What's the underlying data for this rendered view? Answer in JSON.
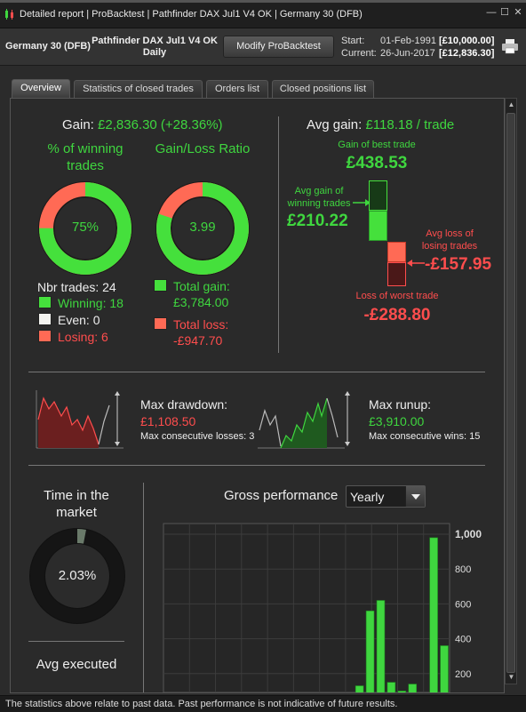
{
  "window": {
    "title": "Detailed report | ProBacktest | Pathfinder DAX Jul1 V4 OK | Germany 30 (DFB)",
    "minimize": "—",
    "maximize": "☐",
    "close": "✕"
  },
  "header": {
    "instrument": "Germany 30 (DFB)",
    "system_name": "Pathfinder DAX Jul1 V4 OK",
    "timeframe": "Daily",
    "modify_button": "Modify ProBacktest",
    "start_label": "Start:",
    "start_date": "01-Feb-1991",
    "start_capital": "[£10,000.00]",
    "current_label": "Current:",
    "current_date": "26-Jun-2017",
    "current_capital": "[£12,836.30]"
  },
  "tabs": [
    "Overview",
    "Statistics of closed trades",
    "Orders list",
    "Closed positions list"
  ],
  "overview": {
    "gain_label": "Gain:",
    "gain_value": "£2,836.30 (+28.36%)",
    "winning_title": "% of winning trades",
    "winning_pct_text": "75%",
    "winning_fraction": 0.75,
    "ratio_title": "Gain/Loss Ratio",
    "ratio_value": "3.99",
    "ratio_fraction": 0.8,
    "nbr_trades_label": "Nbr trades: 24",
    "winning_label": "Winning: 18",
    "even_label": "Even: 0",
    "losing_label": "Losing: 6",
    "total_gain_label": "Total gain:",
    "total_gain_value": "£3,784.00",
    "total_loss_label": "Total loss:",
    "total_loss_value": "-£947.70",
    "avg_gain_label": "Avg gain:",
    "avg_gain_value": "£118.18 / trade",
    "best_trade_label": "Gain of best trade",
    "best_trade_value": "£438.53",
    "avg_winning_label": "Avg gain of winning trades",
    "avg_winning_value": "£210.22",
    "avg_losing_label": "Avg loss of losing trades",
    "avg_losing_value": "-£157.95",
    "worst_trade_label": "Loss of worst trade",
    "worst_trade_value": "-£288.80",
    "max_drawdown_label": "Max drawdown:",
    "max_drawdown_value": "£1,108.50",
    "max_consec_losses": "Max consecutive losses: 3",
    "max_runup_label": "Max runup:",
    "max_runup_value": "£3,910.00",
    "max_consec_wins": "Max consecutive wins: 15",
    "time_market_title": "Time in the market",
    "time_market_value": "2.03%",
    "time_market_fraction": 0.0203,
    "avg_executed_title": "Avg executed",
    "gross_perf_title": "Gross performance",
    "period_select": "Yearly"
  },
  "chart_data": {
    "type": "bar",
    "title": "Gross performance",
    "ylim": [
      0,
      1000
    ],
    "y_ticks": [
      "1,000",
      "800",
      "600",
      "400",
      "200"
    ],
    "values": [
      0,
      0,
      0,
      0,
      0,
      0,
      0,
      0,
      0,
      0,
      0,
      0,
      0,
      0,
      0,
      0,
      30,
      10,
      130,
      560,
      620,
      150,
      100,
      140,
      40,
      980,
      360
    ],
    "colors": {
      "positive": "#3fd63f",
      "negative": "#ff4d4d"
    }
  },
  "footer": {
    "disclaimer": "The statistics above relate to past data. Past performance is not indicative of future results."
  },
  "colors": {
    "green": "#3fd63f",
    "red": "#ff4d4d",
    "bg": "#2a2a2a"
  }
}
